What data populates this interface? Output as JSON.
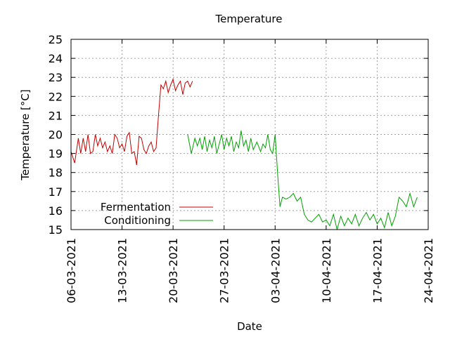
{
  "chart_data": {
    "type": "line",
    "title": "Temperature",
    "xlabel": "Date",
    "ylabel": "Temperature [°C]",
    "xlim": [
      "06-03-2021",
      "24-04-2021"
    ],
    "ylim": [
      15,
      25
    ],
    "x_ticks": [
      "06-03-2021",
      "13-03-2021",
      "20-03-2021",
      "27-03-2021",
      "03-04-2021",
      "10-04-2021",
      "17-04-2021",
      "24-04-2021"
    ],
    "y_ticks": [
      15,
      16,
      17,
      18,
      19,
      20,
      21,
      22,
      23,
      24,
      25
    ],
    "grid": true,
    "legend_position": "bottom-left",
    "series": [
      {
        "name": "Fermentation",
        "color": "#c00000",
        "points": [
          [
            "06-03-2021",
            19.1
          ],
          [
            "06-03-2021",
            18.5
          ],
          [
            "07-03-2021",
            19.8
          ],
          [
            "07-03-2021",
            19.0
          ],
          [
            "07-03-2021",
            19.8
          ],
          [
            "08-03-2021",
            19.1
          ],
          [
            "08-03-2021",
            20.0
          ],
          [
            "08-03-2021",
            19.0
          ],
          [
            "09-03-2021",
            19.1
          ],
          [
            "09-03-2021",
            20.0
          ],
          [
            "09-03-2021",
            19.4
          ],
          [
            "10-03-2021",
            19.8
          ],
          [
            "10-03-2021",
            19.3
          ],
          [
            "10-03-2021",
            19.6
          ],
          [
            "11-03-2021",
            19.1
          ],
          [
            "11-03-2021",
            19.4
          ],
          [
            "11-03-2021",
            19.0
          ],
          [
            "12-03-2021",
            20.0
          ],
          [
            "12-03-2021",
            19.8
          ],
          [
            "12-03-2021",
            19.3
          ],
          [
            "13-03-2021",
            19.5
          ],
          [
            "13-03-2021",
            19.1
          ],
          [
            "13-03-2021",
            19.9
          ],
          [
            "14-03-2021",
            20.1
          ],
          [
            "14-03-2021",
            19.0
          ],
          [
            "14-03-2021",
            19.1
          ],
          [
            "15-03-2021",
            18.4
          ],
          [
            "15-03-2021",
            19.9
          ],
          [
            "15-03-2021",
            19.8
          ],
          [
            "16-03-2021",
            19.2
          ],
          [
            "16-03-2021",
            19.0
          ],
          [
            "16-03-2021",
            19.4
          ],
          [
            "17-03-2021",
            19.6
          ],
          [
            "17-03-2021",
            19.1
          ],
          [
            "17-03-2021",
            19.3
          ],
          [
            "18-03-2021",
            21.0
          ],
          [
            "18-03-2021",
            22.6
          ],
          [
            "18-03-2021",
            22.4
          ],
          [
            "19-03-2021",
            22.8
          ],
          [
            "19-03-2021",
            22.2
          ],
          [
            "19-03-2021",
            22.6
          ],
          [
            "20-03-2021",
            22.9
          ],
          [
            "20-03-2021",
            22.3
          ],
          [
            "20-03-2021",
            22.6
          ],
          [
            "21-03-2021",
            22.8
          ],
          [
            "21-03-2021",
            22.1
          ],
          [
            "21-03-2021",
            22.7
          ],
          [
            "22-03-2021",
            22.8
          ],
          [
            "22-03-2021",
            22.5
          ],
          [
            "22-03-2021",
            22.8
          ]
        ]
      },
      {
        "name": "Conditioning",
        "color": "#00a000",
        "points": [
          [
            "22-03-2021",
            20.0
          ],
          [
            "22-03-2021",
            19.0
          ],
          [
            "23-03-2021",
            19.8
          ],
          [
            "23-03-2021",
            19.4
          ],
          [
            "23-03-2021",
            19.8
          ],
          [
            "24-03-2021",
            19.2
          ],
          [
            "24-03-2021",
            19.9
          ],
          [
            "24-03-2021",
            19.1
          ],
          [
            "25-03-2021",
            19.7
          ],
          [
            "25-03-2021",
            19.3
          ],
          [
            "25-03-2021",
            19.9
          ],
          [
            "26-03-2021",
            19.0
          ],
          [
            "26-03-2021",
            19.5
          ],
          [
            "26-03-2021",
            20.0
          ],
          [
            "27-03-2021",
            19.2
          ],
          [
            "27-03-2021",
            19.8
          ],
          [
            "27-03-2021",
            19.4
          ],
          [
            "28-03-2021",
            19.9
          ],
          [
            "28-03-2021",
            19.1
          ],
          [
            "28-03-2021",
            19.6
          ],
          [
            "29-03-2021",
            19.3
          ],
          [
            "29-03-2021",
            20.2
          ],
          [
            "29-03-2021",
            19.4
          ],
          [
            "30-03-2021",
            19.7
          ],
          [
            "30-03-2021",
            19.1
          ],
          [
            "30-03-2021",
            19.8
          ],
          [
            "31-03-2021",
            19.2
          ],
          [
            "31-03-2021",
            19.6
          ],
          [
            "01-04-2021",
            19.1
          ],
          [
            "01-04-2021",
            19.5
          ],
          [
            "01-04-2021",
            19.3
          ],
          [
            "02-04-2021",
            20.0
          ],
          [
            "02-04-2021",
            19.2
          ],
          [
            "02-04-2021",
            19.0
          ],
          [
            "03-04-2021",
            20.0
          ],
          [
            "03-04-2021",
            18.0
          ],
          [
            "03-04-2021",
            16.2
          ],
          [
            "04-04-2021",
            16.7
          ],
          [
            "04-04-2021",
            16.6
          ],
          [
            "05-04-2021",
            16.7
          ],
          [
            "05-04-2021",
            16.9
          ],
          [
            "06-04-2021",
            16.5
          ],
          [
            "06-04-2021",
            16.7
          ],
          [
            "07-04-2021",
            15.8
          ],
          [
            "07-04-2021",
            15.5
          ],
          [
            "08-04-2021",
            15.4
          ],
          [
            "08-04-2021",
            15.6
          ],
          [
            "09-04-2021",
            15.8
          ],
          [
            "09-04-2021",
            15.4
          ],
          [
            "10-04-2021",
            15.5
          ],
          [
            "10-04-2021",
            15.2
          ],
          [
            "11-04-2021",
            15.8
          ],
          [
            "11-04-2021",
            15.0
          ],
          [
            "12-04-2021",
            15.7
          ],
          [
            "12-04-2021",
            15.2
          ],
          [
            "13-04-2021",
            15.6
          ],
          [
            "13-04-2021",
            15.3
          ],
          [
            "14-04-2021",
            15.8
          ],
          [
            "14-04-2021",
            15.2
          ],
          [
            "15-04-2021",
            15.6
          ],
          [
            "15-04-2021",
            15.9
          ],
          [
            "16-04-2021",
            15.5
          ],
          [
            "16-04-2021",
            15.8
          ],
          [
            "17-04-2021",
            15.3
          ],
          [
            "17-04-2021",
            15.6
          ],
          [
            "18-04-2021",
            15.1
          ],
          [
            "18-04-2021",
            15.9
          ],
          [
            "19-04-2021",
            15.2
          ],
          [
            "19-04-2021",
            15.7
          ],
          [
            "20-04-2021",
            16.7
          ],
          [
            "20-04-2021",
            16.5
          ],
          [
            "21-04-2021",
            16.2
          ],
          [
            "21-04-2021",
            16.9
          ],
          [
            "22-04-2021",
            16.2
          ],
          [
            "22-04-2021",
            16.7
          ]
        ]
      }
    ]
  }
}
